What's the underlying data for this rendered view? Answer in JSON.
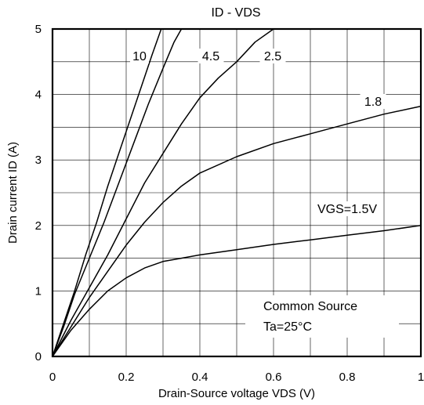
{
  "chart_data": {
    "type": "line",
    "title": "ID - VDS",
    "xlabel": "Drain-Source voltage  VDS (V)",
    "ylabel": "Drain current  ID (A)",
    "xlim": [
      0,
      1
    ],
    "ylim": [
      0,
      5
    ],
    "x_ticks": [
      "0",
      "0.2",
      "0.4",
      "0.6",
      "0.8",
      "1"
    ],
    "y_ticks": [
      "0",
      "1",
      "2",
      "3",
      "4",
      "5"
    ],
    "grid": true,
    "annotations": [
      "Common Source",
      "Ta=25°C"
    ],
    "series": [
      {
        "name": "10",
        "points": [
          [
            0,
            0
          ],
          [
            0.03,
            0.5
          ],
          [
            0.06,
            1.0
          ],
          [
            0.09,
            1.55
          ],
          [
            0.12,
            2.05
          ],
          [
            0.15,
            2.6
          ],
          [
            0.18,
            3.1
          ],
          [
            0.21,
            3.6
          ],
          [
            0.24,
            4.1
          ],
          [
            0.27,
            4.6
          ],
          [
            0.295,
            5.0
          ]
        ]
      },
      {
        "name": "4.5",
        "points": [
          [
            0,
            0
          ],
          [
            0.03,
            0.45
          ],
          [
            0.06,
            0.95
          ],
          [
            0.1,
            1.5
          ],
          [
            0.14,
            2.05
          ],
          [
            0.18,
            2.65
          ],
          [
            0.22,
            3.25
          ],
          [
            0.26,
            3.85
          ],
          [
            0.3,
            4.4
          ],
          [
            0.33,
            4.8
          ],
          [
            0.35,
            5.0
          ]
        ]
      },
      {
        "name": "2.5",
        "points": [
          [
            0,
            0
          ],
          [
            0.05,
            0.55
          ],
          [
            0.1,
            1.05
          ],
          [
            0.15,
            1.55
          ],
          [
            0.2,
            2.1
          ],
          [
            0.25,
            2.65
          ],
          [
            0.3,
            3.1
          ],
          [
            0.35,
            3.55
          ],
          [
            0.4,
            3.95
          ],
          [
            0.45,
            4.25
          ],
          [
            0.5,
            4.5
          ],
          [
            0.55,
            4.8
          ],
          [
            0.6,
            5.0
          ]
        ]
      },
      {
        "name": "1.8",
        "points": [
          [
            0,
            0
          ],
          [
            0.05,
            0.45
          ],
          [
            0.1,
            0.9
          ],
          [
            0.15,
            1.3
          ],
          [
            0.2,
            1.7
          ],
          [
            0.25,
            2.05
          ],
          [
            0.3,
            2.35
          ],
          [
            0.35,
            2.6
          ],
          [
            0.4,
            2.8
          ],
          [
            0.5,
            3.05
          ],
          [
            0.6,
            3.25
          ],
          [
            0.7,
            3.4
          ],
          [
            0.8,
            3.55
          ],
          [
            0.9,
            3.7
          ],
          [
            1.0,
            3.82
          ]
        ]
      },
      {
        "name": "VGS=1.5V",
        "points": [
          [
            0,
            0
          ],
          [
            0.05,
            0.4
          ],
          [
            0.1,
            0.72
          ],
          [
            0.15,
            1.0
          ],
          [
            0.2,
            1.2
          ],
          [
            0.25,
            1.35
          ],
          [
            0.3,
            1.45
          ],
          [
            0.35,
            1.5
          ],
          [
            0.4,
            1.55
          ],
          [
            0.5,
            1.63
          ],
          [
            0.6,
            1.71
          ],
          [
            0.7,
            1.78
          ],
          [
            0.8,
            1.85
          ],
          [
            0.9,
            1.92
          ],
          [
            1.0,
            2.0
          ]
        ]
      }
    ]
  }
}
